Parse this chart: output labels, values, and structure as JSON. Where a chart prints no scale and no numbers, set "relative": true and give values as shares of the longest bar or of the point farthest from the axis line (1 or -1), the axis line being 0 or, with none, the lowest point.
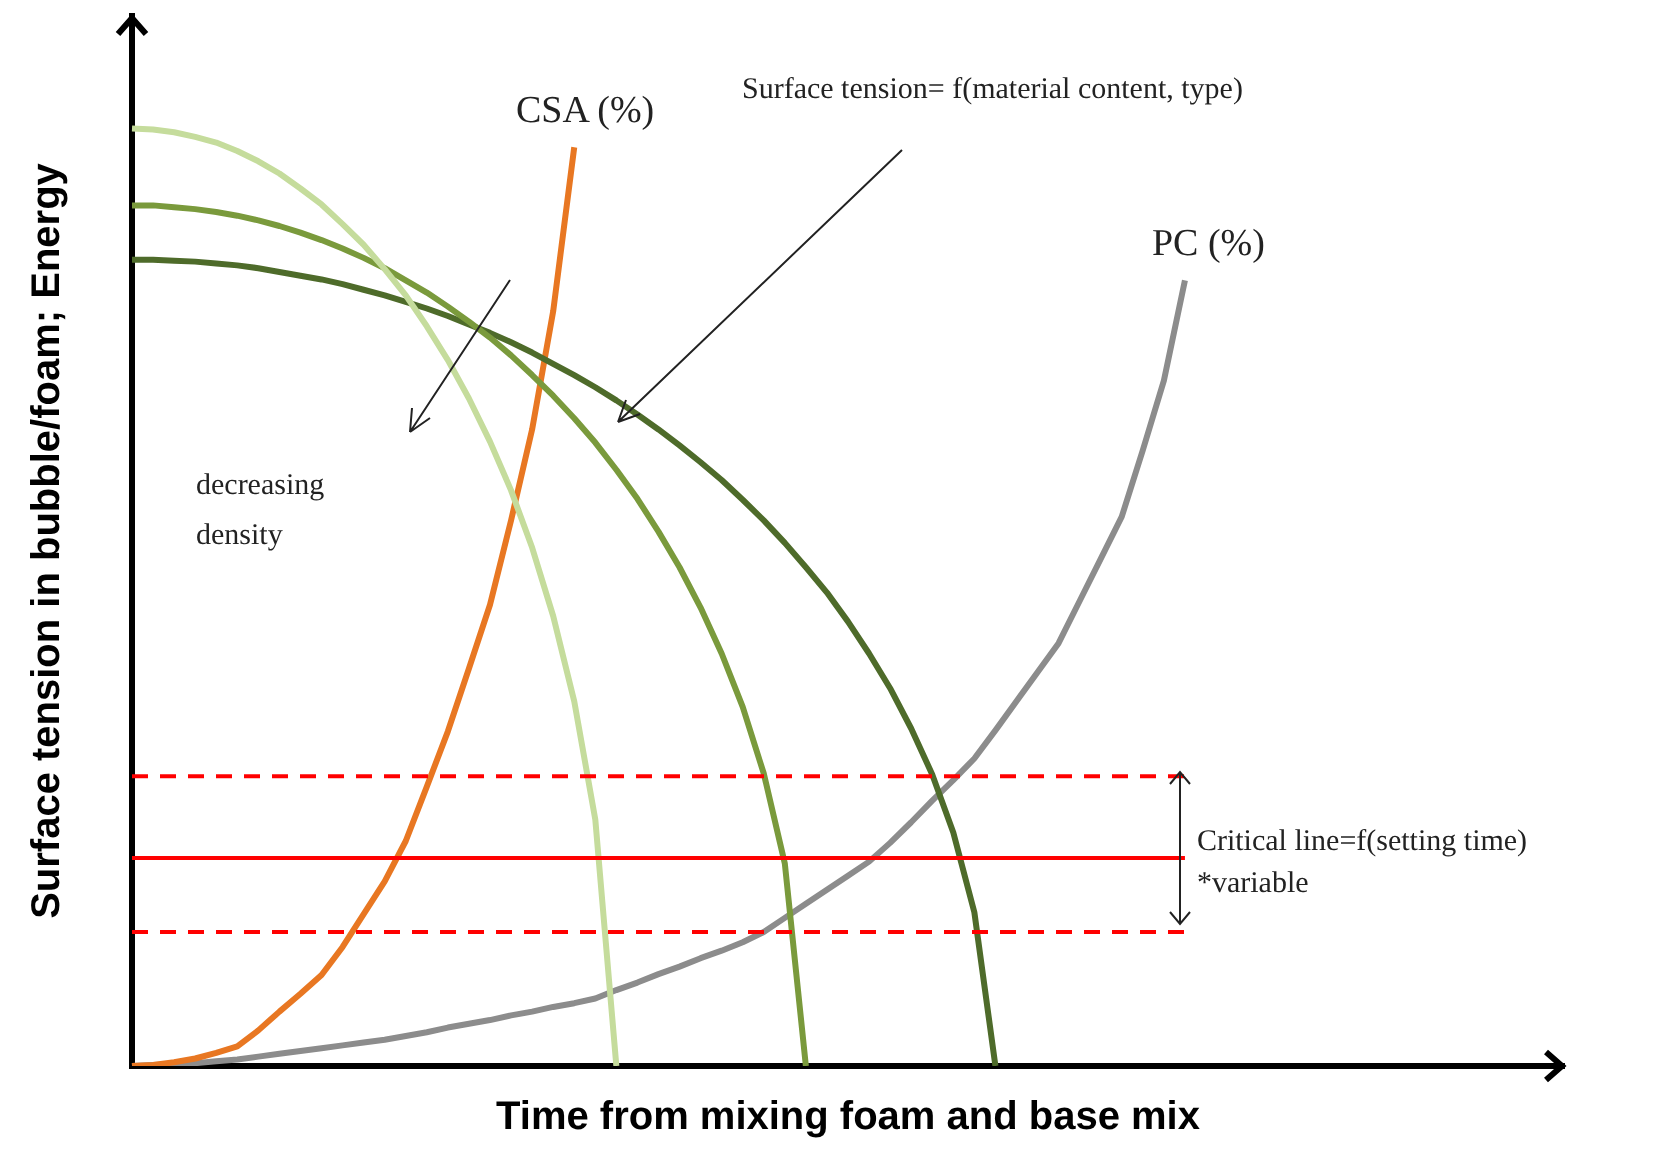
{
  "chart_data": {
    "type": "line",
    "relative": true,
    "xlabel": "Time from mixing foam and base mix",
    "ylabel": "Surface tension in bubble/foam; Energy",
    "legend": false,
    "grid": false,
    "tick_labels": false,
    "marker": "none",
    "categories": [
      null,
      null,
      null,
      null,
      null,
      null,
      null,
      null,
      null,
      null,
      null,
      null,
      null,
      null,
      null,
      null,
      null,
      null,
      null,
      null,
      null,
      null,
      null,
      null,
      null,
      null,
      null,
      null,
      null,
      null,
      null,
      null,
      null,
      null,
      null,
      null,
      null,
      null,
      null,
      null,
      null,
      null,
      null,
      null,
      null,
      null,
      null,
      null,
      null,
      null,
      null,
      null,
      null,
      null,
      null,
      null,
      null,
      null,
      null,
      null,
      null,
      null,
      null,
      null,
      null,
      null,
      null,
      null,
      null
    ],
    "series": [
      {
        "color": "#c5dc9c",
        "values": [
          1,
          0.999,
          0.996,
          0.991,
          0.985,
          0.976,
          0.965,
          0.952,
          0.936,
          0.919,
          0.898,
          0.876,
          0.85,
          0.822,
          0.789,
          0.753,
          0.712,
          0.666,
          0.614,
          0.553,
          0.48,
          0.389,
          0.263,
          0,
          null,
          null,
          null,
          null,
          null,
          null,
          null,
          null,
          null,
          null,
          null,
          null,
          null,
          null,
          null,
          null,
          null,
          null,
          null,
          null,
          null,
          null,
          null,
          null,
          null,
          null,
          null,
          null,
          null,
          null,
          null,
          null,
          null,
          null,
          null,
          null,
          null,
          null,
          null,
          null,
          null,
          null,
          null,
          null,
          null
        ]
      },
      {
        "color": "#7a9a3c",
        "values": [
          0.918,
          0.918,
          0.916,
          0.914,
          0.911,
          0.907,
          0.902,
          0.896,
          0.889,
          0.881,
          0.872,
          0.862,
          0.851,
          0.838,
          0.825,
          0.81,
          0.794,
          0.777,
          0.758,
          0.737,
          0.715,
          0.691,
          0.665,
          0.636,
          0.605,
          0.57,
          0.532,
          0.489,
          0.44,
          0.383,
          0.312,
          0.216,
          0,
          null,
          null,
          null,
          null,
          null,
          null,
          null,
          null,
          null,
          null,
          null,
          null,
          null,
          null,
          null,
          null,
          null,
          null,
          null,
          null,
          null,
          null,
          null,
          null,
          null,
          null,
          null,
          null,
          null,
          null,
          null,
          null,
          null,
          null,
          null,
          null
        ]
      },
      {
        "color": "#4e6b2a",
        "values": [
          0.86,
          0.86,
          0.859,
          0.858,
          0.856,
          0.854,
          0.851,
          0.847,
          0.843,
          0.839,
          0.834,
          0.828,
          0.822,
          0.815,
          0.808,
          0.8,
          0.791,
          0.782,
          0.772,
          0.761,
          0.749,
          0.737,
          0.724,
          0.71,
          0.695,
          0.679,
          0.662,
          0.644,
          0.625,
          0.604,
          0.582,
          0.558,
          0.532,
          0.505,
          0.474,
          0.44,
          0.403,
          0.36,
          0.311,
          0.249,
          0.164,
          0,
          null,
          null,
          null,
          null,
          null,
          null,
          null,
          null,
          null,
          null,
          null,
          null,
          null,
          null,
          null,
          null,
          null,
          null,
          null,
          null,
          null,
          null,
          null,
          null,
          null,
          null,
          null
        ]
      },
      {
        "name": "CSA (%)",
        "color": "#e87722",
        "values": [
          0,
          0.001,
          0.004,
          0.008,
          0.014,
          0.021,
          0.038,
          0.058,
          0.077,
          0.097,
          0.127,
          0.162,
          0.197,
          0.24,
          0.298,
          0.357,
          0.424,
          0.492,
          0.582,
          0.679,
          0.805,
          0.98,
          null,
          null,
          null,
          null,
          null,
          null,
          null,
          null,
          null,
          null,
          null,
          null,
          null,
          null,
          null,
          null,
          null,
          null,
          null,
          null,
          null,
          null,
          null,
          null,
          null,
          null,
          null,
          null,
          null,
          null,
          null,
          null,
          null,
          null,
          null,
          null,
          null,
          null,
          null,
          null,
          null,
          null,
          null,
          null,
          null,
          null,
          null
        ]
      },
      {
        "name": "PC (%)",
        "color": "#8c8c8c",
        "values": [
          0,
          0.001,
          0.002,
          0.003,
          0.005,
          0.007,
          0.01,
          0.013,
          0.016,
          0.019,
          0.022,
          0.025,
          0.028,
          0.032,
          0.036,
          0.041,
          0.045,
          0.049,
          0.054,
          0.058,
          0.063,
          0.067,
          0.072,
          0.081,
          0.089,
          0.098,
          0.106,
          0.115,
          0.123,
          0.132,
          0.143,
          0.158,
          0.173,
          0.188,
          0.203,
          0.218,
          0.238,
          0.26,
          0.283,
          0.305,
          0.328,
          0.358,
          0.389,
          0.42,
          0.451,
          0.496,
          0.541,
          0.586,
          0.657,
          0.731,
          0.838,
          null,
          null,
          null,
          null,
          null,
          null,
          null,
          null,
          null,
          null,
          null,
          null,
          null,
          null,
          null,
          null,
          null,
          null
        ]
      }
    ],
    "ref_lines": [
      {
        "axis": "y",
        "value": 0.222,
        "label": "Critical line=f(setting time)",
        "color": "#ff0000",
        "line_style": "solid"
      },
      {
        "axis": "y",
        "value": 0.309,
        "color": "#ff0000",
        "line_style": "dashed"
      },
      {
        "axis": "y",
        "value": 0.143,
        "color": "#ff0000",
        "line_style": "dashed"
      }
    ],
    "annotations": [
      "Surface tension= f(material content, type)",
      "decreasing density",
      "*variable"
    ]
  }
}
